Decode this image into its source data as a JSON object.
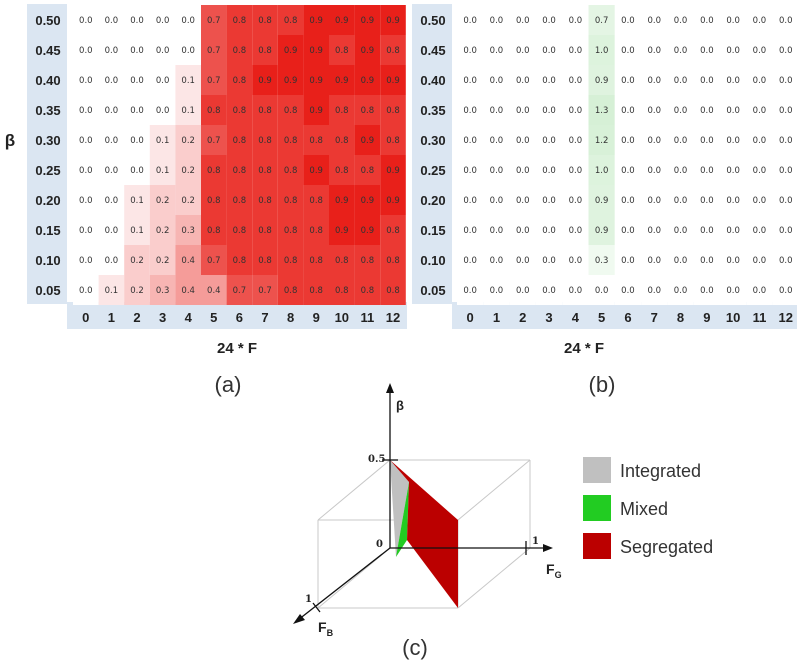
{
  "figure": {
    "panel_labels": [
      "(a)",
      "(b)",
      "(c)"
    ]
  },
  "chart_data": [
    {
      "type": "heatmap",
      "panel": "(a)",
      "xlabel": "24 * F",
      "ylabel": "β",
      "x": [
        "0",
        "1",
        "2",
        "3",
        "4",
        "5",
        "6",
        "7",
        "8",
        "9",
        "10",
        "11",
        "12"
      ],
      "y": [
        "0.50",
        "0.45",
        "0.40",
        "0.35",
        "0.30",
        "0.25",
        "0.20",
        "0.15",
        "0.10",
        "0.05"
      ],
      "colormap": {
        "low": "#ffffff",
        "high": "#e8201a"
      },
      "values": [
        [
          0.0,
          0.0,
          0.0,
          0.0,
          0.0,
          0.7,
          0.8,
          0.8,
          0.8,
          0.9,
          0.9,
          0.9,
          0.9
        ],
        [
          0.0,
          0.0,
          0.0,
          0.0,
          0.0,
          0.7,
          0.8,
          0.8,
          0.9,
          0.9,
          0.8,
          0.9,
          0.8
        ],
        [
          0.0,
          0.0,
          0.0,
          0.0,
          0.1,
          0.7,
          0.8,
          0.9,
          0.9,
          0.9,
          0.9,
          0.9,
          0.9
        ],
        [
          0.0,
          0.0,
          0.0,
          0.0,
          0.1,
          0.8,
          0.8,
          0.8,
          0.8,
          0.9,
          0.8,
          0.8,
          0.8
        ],
        [
          0.0,
          0.0,
          0.0,
          0.1,
          0.2,
          0.7,
          0.8,
          0.8,
          0.8,
          0.8,
          0.8,
          0.9,
          0.8
        ],
        [
          0.0,
          0.0,
          0.0,
          0.1,
          0.2,
          0.8,
          0.8,
          0.8,
          0.8,
          0.9,
          0.8,
          0.8,
          0.9
        ],
        [
          0.0,
          0.0,
          0.1,
          0.2,
          0.2,
          0.8,
          0.8,
          0.8,
          0.8,
          0.8,
          0.9,
          0.9,
          0.9
        ],
        [
          0.0,
          0.0,
          0.1,
          0.2,
          0.3,
          0.8,
          0.8,
          0.8,
          0.8,
          0.8,
          0.9,
          0.9,
          0.8
        ],
        [
          0.0,
          0.0,
          0.2,
          0.2,
          0.4,
          0.7,
          0.8,
          0.8,
          0.8,
          0.8,
          0.8,
          0.8,
          0.8
        ],
        [
          0.0,
          0.1,
          0.2,
          0.3,
          0.4,
          0.4,
          0.7,
          0.7,
          0.8,
          0.8,
          0.8,
          0.8,
          0.8
        ]
      ]
    },
    {
      "type": "heatmap",
      "panel": "(b)",
      "xlabel": "24 * F",
      "ylabel": "",
      "x": [
        "0",
        "1",
        "2",
        "3",
        "4",
        "5",
        "6",
        "7",
        "8",
        "9",
        "10",
        "11",
        "12"
      ],
      "y": [
        "0.50",
        "0.45",
        "0.40",
        "0.35",
        "0.30",
        "0.25",
        "0.20",
        "0.15",
        "0.10",
        "0.05"
      ],
      "colormap": {
        "low": "#ffffff",
        "high": "#d6f0d6"
      },
      "values": [
        [
          0.0,
          0.0,
          0.0,
          0.0,
          0.0,
          0.7,
          0.0,
          0.0,
          0.0,
          0.0,
          0.0,
          0.0,
          0.0
        ],
        [
          0.0,
          0.0,
          0.0,
          0.0,
          0.0,
          1.0,
          0.0,
          0.0,
          0.0,
          0.0,
          0.0,
          0.0,
          0.0
        ],
        [
          0.0,
          0.0,
          0.0,
          0.0,
          0.0,
          0.9,
          0.0,
          0.0,
          0.0,
          0.0,
          0.0,
          0.0,
          0.0
        ],
        [
          0.0,
          0.0,
          0.0,
          0.0,
          0.0,
          1.3,
          0.0,
          0.0,
          0.0,
          0.0,
          0.0,
          0.0,
          0.0
        ],
        [
          0.0,
          0.0,
          0.0,
          0.0,
          0.0,
          1.2,
          0.0,
          0.0,
          0.0,
          0.0,
          0.0,
          0.0,
          0.0
        ],
        [
          0.0,
          0.0,
          0.0,
          0.0,
          0.0,
          1.0,
          0.0,
          0.0,
          0.0,
          0.0,
          0.0,
          0.0,
          0.0
        ],
        [
          0.0,
          0.0,
          0.0,
          0.0,
          0.0,
          0.9,
          0.0,
          0.0,
          0.0,
          0.0,
          0.0,
          0.0,
          0.0
        ],
        [
          0.0,
          0.0,
          0.0,
          0.0,
          0.0,
          0.9,
          0.0,
          0.0,
          0.0,
          0.0,
          0.0,
          0.0,
          0.0
        ],
        [
          0.0,
          0.0,
          0.0,
          0.0,
          0.0,
          0.3,
          0.0,
          0.0,
          0.0,
          0.0,
          0.0,
          0.0,
          0.0
        ],
        [
          0.0,
          0.0,
          0.0,
          0.0,
          0.0,
          0.0,
          0.0,
          0.0,
          0.0,
          0.0,
          0.0,
          0.0,
          0.0
        ]
      ]
    },
    {
      "type": "diagram-3d",
      "panel": "(c)",
      "axes": {
        "vertical": "β",
        "right": "F",
        "right_subscript": "G",
        "left": "F",
        "left_subscript": "B"
      },
      "tick_labels": {
        "vertical_max": "0.5",
        "right_max": "1",
        "left_max": "1",
        "origin": "0"
      },
      "legend": [
        {
          "label": "Integrated",
          "color": "#c0c0c0"
        },
        {
          "label": "Mixed",
          "color": "#22cc22"
        },
        {
          "label": "Segregated",
          "color": "#bb0000"
        }
      ]
    }
  ]
}
